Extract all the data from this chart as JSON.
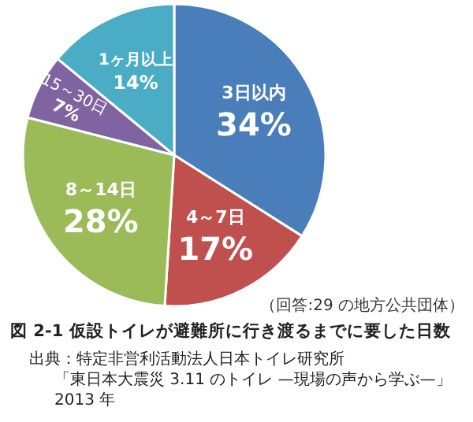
{
  "chart_data": {
    "type": "pie",
    "categories": [
      "3日以内",
      "4～7日",
      "8～14日",
      "15～30日",
      "1ヶ月以上"
    ],
    "values": [
      34,
      17,
      28,
      7,
      14
    ],
    "value_labels": [
      "34%",
      "17%",
      "28%",
      "7%",
      "14%"
    ],
    "colors": [
      "#4a7ebb",
      "#c0504d",
      "#9bbb59",
      "#8064a2",
      "#4bacc6"
    ],
    "title": "図 2-1 仮設トイレが避難所に行き渡るまでに要した日数",
    "annotations": [
      "（回答:29 の地方公共団体）",
      "出典：特定非営利活動法人日本トイレ研究所",
      "「東日本大震災 3.11 のトイレ —現場の声から学ぶ—」2013 年"
    ]
  }
}
